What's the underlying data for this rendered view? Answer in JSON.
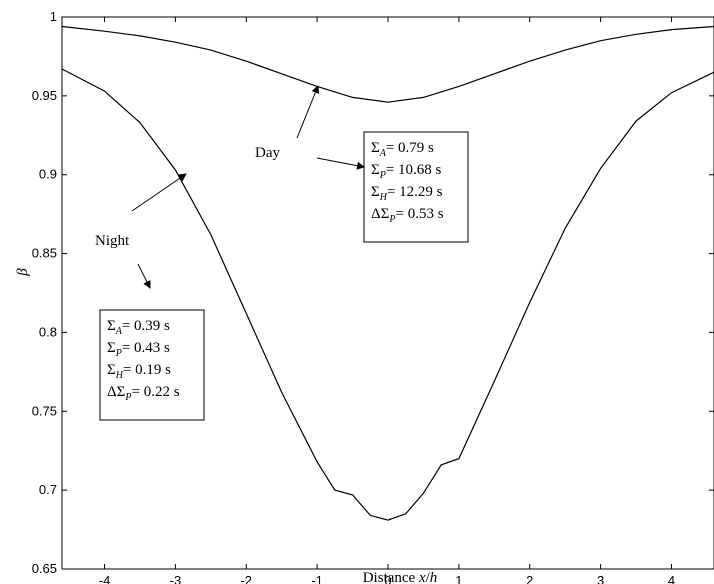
{
  "chart_data": {
    "type": "line",
    "title": "",
    "xlabel": "Distance x/h",
    "xlabel_parts": [
      "Distance ",
      "x",
      "/",
      "h"
    ],
    "ylabel": "β",
    "xlim": [
      -4.6,
      4.6
    ],
    "ylim": [
      0.65,
      1.0
    ],
    "xticks": [
      -4,
      -3,
      -2,
      -1,
      0,
      1,
      2,
      3,
      4
    ],
    "yticks": [
      0.65,
      0.7,
      0.75,
      0.8,
      0.85,
      0.9,
      0.95,
      1
    ],
    "ytick_labels": [
      "0.65",
      "0.7",
      "0.75",
      "0.8",
      "0.85",
      "0.9",
      "0.95",
      "1"
    ],
    "grid": false,
    "series": [
      {
        "name": "Day",
        "x": [
          -4.6,
          -4.0,
          -3.5,
          -3.0,
          -2.5,
          -2.0,
          -1.5,
          -1.0,
          -0.5,
          0.0,
          0.5,
          1.0,
          1.5,
          2.0,
          2.5,
          3.0,
          3.5,
          4.0,
          4.6
        ],
        "y": [
          0.994,
          0.991,
          0.988,
          0.984,
          0.979,
          0.972,
          0.964,
          0.956,
          0.949,
          0.946,
          0.949,
          0.956,
          0.964,
          0.972,
          0.979,
          0.985,
          0.989,
          0.992,
          0.994
        ]
      },
      {
        "name": "Night",
        "x": [
          -4.6,
          -4.0,
          -3.5,
          -3.0,
          -2.5,
          -2.0,
          -1.5,
          -1.0,
          -0.75,
          -0.5,
          -0.25,
          0.0,
          0.25,
          0.5,
          0.75,
          1.0,
          1.5,
          2.0,
          2.5,
          3.0,
          3.5,
          4.0,
          4.6
        ],
        "y": [
          0.967,
          0.953,
          0.933,
          0.903,
          0.862,
          0.812,
          0.762,
          0.718,
          0.7,
          0.697,
          0.684,
          0.681,
          0.685,
          0.698,
          0.716,
          0.72,
          0.769,
          0.819,
          0.866,
          0.904,
          0.934,
          0.952,
          0.965
        ]
      }
    ],
    "annotations": [
      {
        "label": "Day",
        "box": [
          {
            "sym": "Σ",
            "sub": "A",
            "val": "= 0.79 s",
            "delta": false
          },
          {
            "sym": "Σ",
            "sub": "P",
            "val": "= 10.68 s",
            "delta": false
          },
          {
            "sym": "Σ",
            "sub": "H",
            "val": "= 12.29 s",
            "delta": false
          },
          {
            "sym": "ΔΣ",
            "sub": "P",
            "val": "= 0.53 s",
            "delta": true
          }
        ]
      },
      {
        "label": "Night",
        "box": [
          {
            "sym": "Σ",
            "sub": "A",
            "val": "= 0.39 s",
            "delta": false
          },
          {
            "sym": "Σ",
            "sub": "P",
            "val": "= 0.43 s",
            "delta": false
          },
          {
            "sym": "Σ",
            "sub": "H",
            "val": "= 0.19 s",
            "delta": false
          },
          {
            "sym": "ΔΣ",
            "sub": "P",
            "val": "= 0.22 s",
            "delta": true
          }
        ]
      }
    ]
  }
}
